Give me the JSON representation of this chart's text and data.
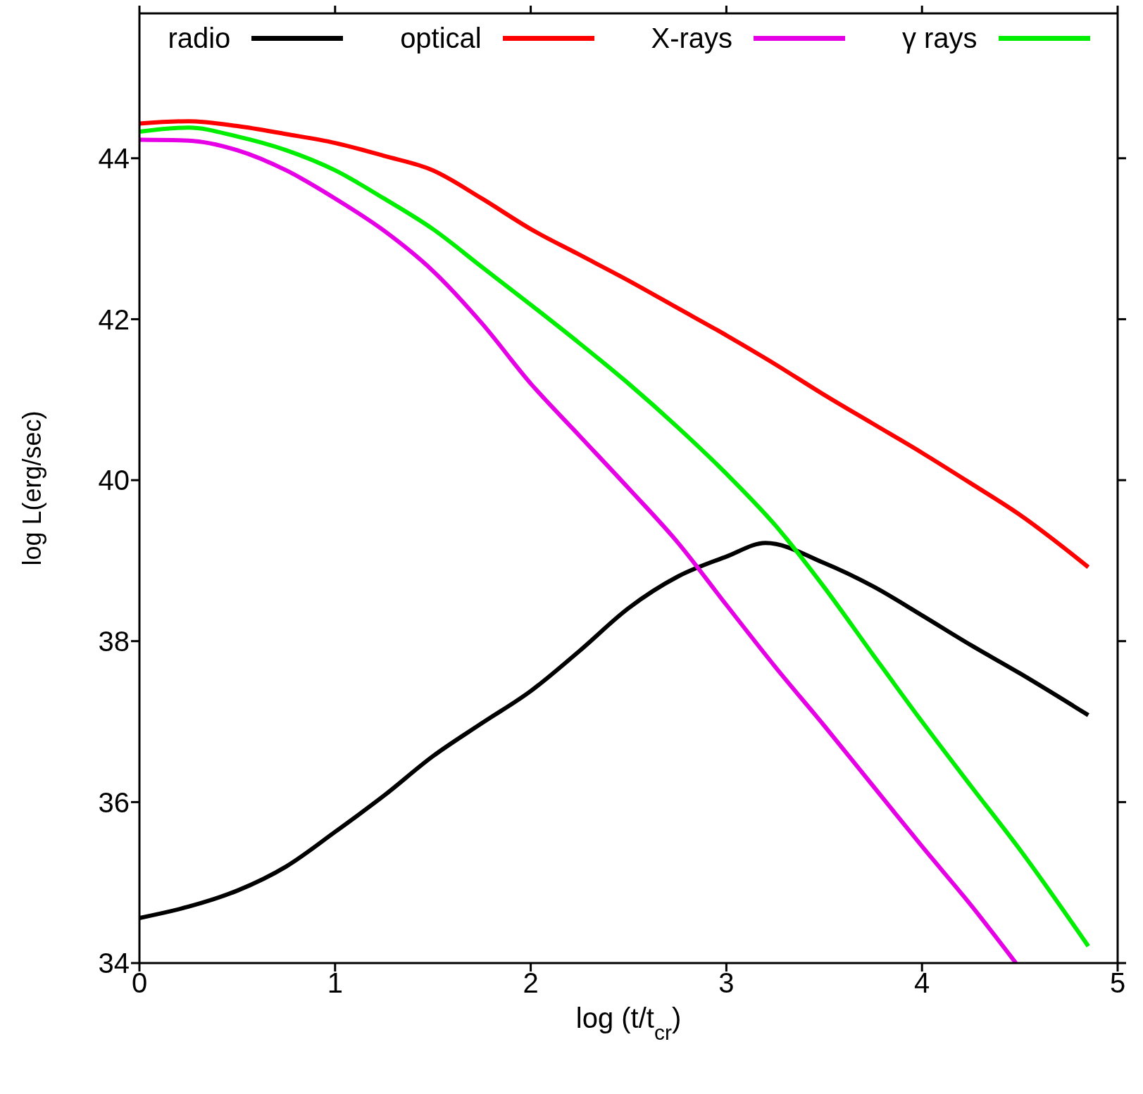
{
  "chart_data": {
    "type": "line",
    "xlabel": "log (t/t$_{cr}$)",
    "ylabel": "log L(erg/sec)",
    "xlim": [
      0,
      5
    ],
    "xticks": [
      0,
      1,
      2,
      3,
      4,
      5
    ],
    "ylim": [
      34,
      45.8
    ],
    "yticks": [
      34,
      36,
      38,
      40,
      42,
      44
    ],
    "legend": "top",
    "marker": "none",
    "line_style": "solid",
    "series": [
      {
        "name": "radio",
        "color": "#000000",
        "x": [
          0,
          0.25,
          0.5,
          0.75,
          1,
          1.25,
          1.5,
          1.75,
          2,
          2.25,
          2.5,
          2.75,
          3,
          3.2,
          3.5,
          3.75,
          4,
          4.25,
          4.5,
          4.85
        ],
        "values": [
          34.56,
          34.7,
          34.9,
          35.2,
          35.63,
          36.08,
          36.57,
          36.98,
          37.38,
          37.88,
          38.41,
          38.8,
          39.05,
          39.22,
          38.97,
          38.68,
          38.32,
          37.95,
          37.6,
          37.08
        ]
      },
      {
        "name": "optical",
        "color": "#ff0000",
        "x": [
          0,
          0.25,
          0.5,
          0.75,
          1,
          1.25,
          1.5,
          1.75,
          2,
          2.25,
          2.5,
          2.75,
          3,
          3.25,
          3.5,
          3.75,
          4,
          4.25,
          4.5,
          4.85
        ],
        "values": [
          44.43,
          44.46,
          44.4,
          44.3,
          44.19,
          44.03,
          43.85,
          43.5,
          43.12,
          42.8,
          42.48,
          42.14,
          41.8,
          41.44,
          41.06,
          40.7,
          40.34,
          39.96,
          39.57,
          38.92
        ]
      },
      {
        "name": "X-rays",
        "color": "#e600e6",
        "x": [
          0,
          0.25,
          0.5,
          0.75,
          1,
          1.25,
          1.5,
          1.75,
          2,
          2.25,
          2.5,
          2.75,
          3,
          3.25,
          3.5,
          3.75,
          4,
          4.25,
          4.48
        ],
        "values": [
          44.23,
          44.22,
          44.1,
          43.85,
          43.5,
          43.1,
          42.6,
          41.95,
          41.2,
          40.55,
          39.9,
          39.23,
          38.45,
          37.68,
          36.95,
          36.2,
          35.45,
          34.72,
          34.0
        ]
      },
      {
        "name": "γ rays",
        "color": "#00ee00",
        "x": [
          0,
          0.25,
          0.5,
          0.75,
          1,
          1.25,
          1.5,
          1.75,
          2,
          2.25,
          2.5,
          2.75,
          3,
          3.25,
          3.5,
          3.75,
          4,
          4.25,
          4.5,
          4.85
        ],
        "values": [
          44.33,
          44.38,
          44.27,
          44.1,
          43.85,
          43.5,
          43.12,
          42.65,
          42.18,
          41.7,
          41.2,
          40.66,
          40.08,
          39.44,
          38.67,
          37.83,
          37.0,
          36.2,
          35.41,
          34.21
        ]
      }
    ]
  }
}
